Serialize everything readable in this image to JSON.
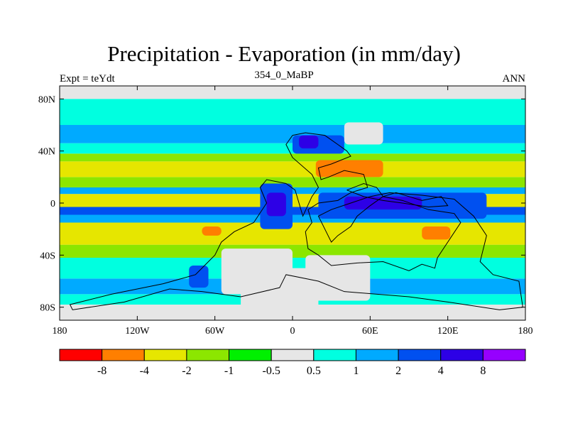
{
  "chart_data": {
    "type": "heatmap",
    "title": "Precipitation - Evaporation (in mm/day)",
    "subtitle": "354_0_MaBP",
    "left_label": "Expt = teYdt",
    "right_label": "ANN",
    "xlim": [
      -180,
      180
    ],
    "ylim": [
      -90,
      90
    ],
    "x_ticks": [
      {
        "value": -180,
        "label": "180"
      },
      {
        "value": -120,
        "label": "120W"
      },
      {
        "value": -60,
        "label": "60W"
      },
      {
        "value": 0,
        "label": "0"
      },
      {
        "value": 60,
        "label": "60E"
      },
      {
        "value": 120,
        "label": "120E"
      },
      {
        "value": 180,
        "label": "180"
      }
    ],
    "y_ticks": [
      {
        "value": 80,
        "label": "80N"
      },
      {
        "value": 40,
        "label": "40N"
      },
      {
        "value": 0,
        "label": "0"
      },
      {
        "value": -40,
        "label": "40S"
      },
      {
        "value": -80,
        "label": "80S"
      }
    ],
    "colorbar": {
      "levels": [
        "-8",
        "-4",
        "-2",
        "-1",
        "-0.5",
        "0.5",
        "1",
        "2",
        "4",
        "8"
      ],
      "colors": [
        "#ff0000",
        "#ff7f00",
        "#e6e600",
        "#8ce600",
        "#00f000",
        "#e6e6e6",
        "#00ffe0",
        "#00aaff",
        "#0050f0",
        "#2d00e6",
        "#9600ff"
      ]
    },
    "zonal_bands": [
      {
        "lat": [
          -90,
          -78
        ],
        "color": "#e6e6e6"
      },
      {
        "lat": [
          -78,
          -70
        ],
        "color": "#00ffe0"
      },
      {
        "lat": [
          -70,
          -58
        ],
        "color": "#00aaff"
      },
      {
        "lat": [
          -58,
          -42
        ],
        "color": "#00ffe0"
      },
      {
        "lat": [
          -42,
          -32
        ],
        "color": "#8ce600"
      },
      {
        "lat": [
          -32,
          -15
        ],
        "color": "#e6e600"
      },
      {
        "lat": [
          -15,
          -9
        ],
        "color": "#00aaff"
      },
      {
        "lat": [
          -9,
          -3
        ],
        "color": "#0050f0"
      },
      {
        "lat": [
          -3,
          7
        ],
        "color": "#e6e600"
      },
      {
        "lat": [
          7,
          12
        ],
        "color": "#00aaff"
      },
      {
        "lat": [
          12,
          20
        ],
        "color": "#8ce600"
      },
      {
        "lat": [
          20,
          32
        ],
        "color": "#e6e600"
      },
      {
        "lat": [
          32,
          38
        ],
        "color": "#8ce600"
      },
      {
        "lat": [
          38,
          46
        ],
        "color": "#00ffe0"
      },
      {
        "lat": [
          46,
          60
        ],
        "color": "#00aaff"
      },
      {
        "lat": [
          60,
          66
        ],
        "color": "#00ffe0"
      },
      {
        "lat": [
          66,
          80
        ],
        "color": "#00ffe0"
      },
      {
        "lat": [
          80,
          90
        ],
        "color": "#e6e6e6"
      }
    ],
    "patches": [
      {
        "name": "patch-south-asia-dry",
        "lon": [
          18,
          70
        ],
        "lat": [
          20,
          33
        ],
        "color": "#ff7f00"
      },
      {
        "name": "patch-australia-dry",
        "lon": [
          100,
          122
        ],
        "lat": [
          -28,
          -18
        ],
        "color": "#ff7f00"
      },
      {
        "name": "patch-south-pacific-dry",
        "lon": [
          -70,
          -55
        ],
        "lat": [
          -25,
          -18
        ],
        "color": "#ff7f00"
      },
      {
        "name": "patch-north-cont-wet",
        "lon": [
          0,
          40
        ],
        "lat": [
          38,
          52
        ],
        "color": "#0050f0"
      },
      {
        "name": "patch-north-cont-deep",
        "lon": [
          5,
          20
        ],
        "lat": [
          42,
          52
        ],
        "color": "#2d00e6"
      },
      {
        "name": "patch-tropics-wet-west",
        "lon": [
          -25,
          0
        ],
        "lat": [
          -20,
          15
        ],
        "color": "#0050f0"
      },
      {
        "name": "patch-tropics-deep-west",
        "lon": [
          -20,
          -5
        ],
        "lat": [
          -10,
          8
        ],
        "color": "#2d00e6"
      },
      {
        "name": "patch-tropics-wet-east",
        "lon": [
          20,
          150
        ],
        "lat": [
          -12,
          8
        ],
        "color": "#0050f0"
      },
      {
        "name": "patch-tropics-deep-east",
        "lon": [
          40,
          100
        ],
        "lat": [
          -5,
          5
        ],
        "color": "#2d00e6"
      },
      {
        "name": "patch-south-cont-dry",
        "lon": [
          -55,
          0
        ],
        "lat": [
          -70,
          -35
        ],
        "color": "#e6e6e6"
      },
      {
        "name": "patch-south-cont-dry-east",
        "lon": [
          10,
          60
        ],
        "lat": [
          -75,
          -40
        ],
        "color": "#e6e6e6"
      },
      {
        "name": "patch-southern-storm",
        "lon": [
          -80,
          -65
        ],
        "lat": [
          -65,
          -48
        ],
        "color": "#0050f0"
      },
      {
        "name": "patch-polar-dry",
        "lon": [
          -40,
          20
        ],
        "lat": [
          -90,
          -50
        ],
        "color": "#e6e6e6"
      },
      {
        "name": "patch-north-dry",
        "lon": [
          40,
          70
        ],
        "lat": [
          45,
          62
        ],
        "color": "#e6e6e6"
      }
    ],
    "continent_outlines": [
      [
        [
          0,
          52
        ],
        [
          10,
          54
        ],
        [
          25,
          52
        ],
        [
          35,
          45
        ],
        [
          42,
          40
        ],
        [
          45,
          36
        ],
        [
          30,
          30
        ],
        [
          20,
          27
        ],
        [
          22,
          18
        ],
        [
          28,
          20
        ],
        [
          40,
          25
        ],
        [
          55,
          22
        ],
        [
          58,
          12
        ],
        [
          45,
          8
        ],
        [
          35,
          2
        ],
        [
          20,
          0
        ],
        [
          12,
          -5
        ],
        [
          15,
          -15
        ],
        [
          10,
          -22
        ],
        [
          12,
          -35
        ],
        [
          20,
          -40
        ],
        [
          30,
          -48
        ],
        [
          50,
          -46
        ],
        [
          70,
          -45
        ],
        [
          90,
          -52
        ],
        [
          100,
          -47
        ],
        [
          110,
          -50
        ],
        [
          112,
          -42
        ],
        [
          120,
          -30
        ],
        [
          130,
          -15
        ],
        [
          125,
          -8
        ],
        [
          105,
          -5
        ],
        [
          85,
          2
        ],
        [
          70,
          5
        ],
        [
          60,
          -2
        ],
        [
          50,
          -10
        ],
        [
          45,
          -18
        ],
        [
          35,
          -25
        ],
        [
          30,
          -30
        ],
        [
          25,
          -20
        ],
        [
          20,
          -10
        ],
        [
          30,
          -5
        ],
        [
          45,
          0
        ],
        [
          60,
          5
        ],
        [
          75,
          8
        ],
        [
          100,
          6
        ],
        [
          125,
          3
        ],
        [
          140,
          -10
        ],
        [
          150,
          -25
        ],
        [
          145,
          -45
        ],
        [
          155,
          -55
        ],
        [
          175,
          -60
        ],
        [
          178,
          -80
        ],
        [
          160,
          -82
        ],
        [
          120,
          -76
        ],
        [
          90,
          -72
        ],
        [
          40,
          -68
        ],
        [
          20,
          -60
        ],
        [
          -5,
          -55
        ],
        [
          -10,
          -65
        ],
        [
          -40,
          -72
        ],
        [
          -70,
          -68
        ],
        [
          -95,
          -66
        ],
        [
          -130,
          -76
        ],
        [
          -170,
          -82
        ],
        [
          -172,
          -78
        ],
        [
          -140,
          -70
        ],
        [
          -100,
          -62
        ],
        [
          -75,
          -55
        ],
        [
          -60,
          -40
        ],
        [
          -55,
          -30
        ],
        [
          -45,
          -22
        ],
        [
          -30,
          -15
        ],
        [
          -20,
          0
        ],
        [
          -25,
          12
        ],
        [
          -20,
          18
        ],
        [
          -5,
          15
        ],
        [
          2,
          10
        ],
        [
          5,
          0
        ],
        [
          8,
          -10
        ],
        [
          15,
          5
        ],
        [
          20,
          12
        ],
        [
          15,
          22
        ],
        [
          0,
          35
        ],
        [
          -5,
          45
        ],
        [
          0,
          52
        ]
      ],
      [
        [
          42,
          10
        ],
        [
          55,
          15
        ],
        [
          65,
          12
        ],
        [
          70,
          5
        ],
        [
          80,
          8
        ],
        [
          90,
          5
        ],
        [
          100,
          2
        ],
        [
          115,
          5
        ],
        [
          120,
          -2
        ],
        [
          105,
          -3
        ],
        [
          85,
          0
        ],
        [
          70,
          2
        ],
        [
          55,
          5
        ],
        [
          42,
          10
        ]
      ]
    ]
  }
}
